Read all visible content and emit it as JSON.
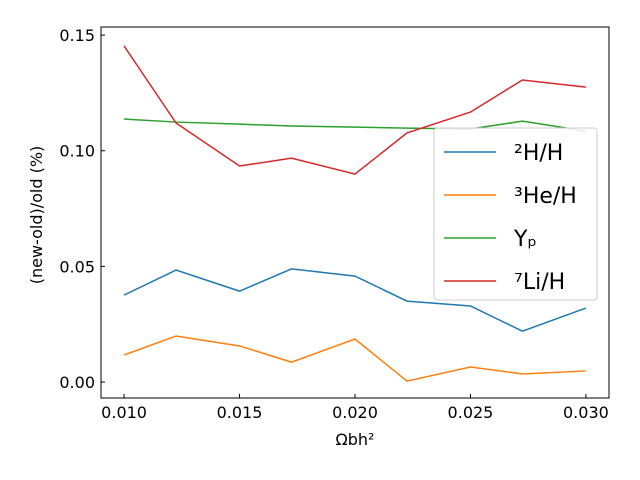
{
  "chart_data": {
    "type": "line",
    "xlabel": "Ωbh²",
    "ylabel": "(new-old)/old (%)",
    "x": [
      0.01,
      0.01225,
      0.015,
      0.01725,
      0.02,
      0.02225,
      0.025,
      0.02725,
      0.03
    ],
    "series": [
      {
        "name": "²H/H",
        "color": "#1f77b4",
        "values": [
          0.0376,
          0.0484,
          0.0393,
          0.0489,
          0.0458,
          0.035,
          0.0329,
          0.022,
          0.032
        ]
      },
      {
        "name": "³He/H",
        "color": "#ff7f0e",
        "values": [
          0.0117,
          0.0199,
          0.0156,
          0.0086,
          0.0186,
          0.0004,
          0.0065,
          0.0035,
          0.0048
        ]
      },
      {
        "name": "Yₚ",
        "color": "#2ca02c",
        "values": [
          0.1137,
          0.1124,
          0.1115,
          0.1107,
          0.1102,
          0.1098,
          0.1094,
          0.1128,
          0.1085
        ]
      },
      {
        "name": "⁷Li/H",
        "color": "#d62728",
        "values": [
          0.1453,
          0.112,
          0.0934,
          0.0968,
          0.0899,
          0.1077,
          0.1167,
          0.1306,
          0.1275
        ]
      }
    ],
    "xlim": [
      0.009,
      0.031
    ],
    "xticks": [
      {
        "value": 0.01,
        "label": "0.010"
      },
      {
        "value": 0.015,
        "label": "0.015"
      },
      {
        "value": 0.02,
        "label": "0.020"
      },
      {
        "value": 0.025,
        "label": "0.025"
      },
      {
        "value": 0.03,
        "label": "0.030"
      }
    ],
    "ylim": [
      -0.0069,
      0.1535
    ],
    "yticks": [
      {
        "value": 0,
        "label": "0.00"
      },
      {
        "value": 0.05,
        "label": "0.05"
      },
      {
        "value": 0.1,
        "label": "0.10"
      },
      {
        "value": 0.15,
        "label": "0.15"
      }
    ],
    "legend": "upper right"
  }
}
